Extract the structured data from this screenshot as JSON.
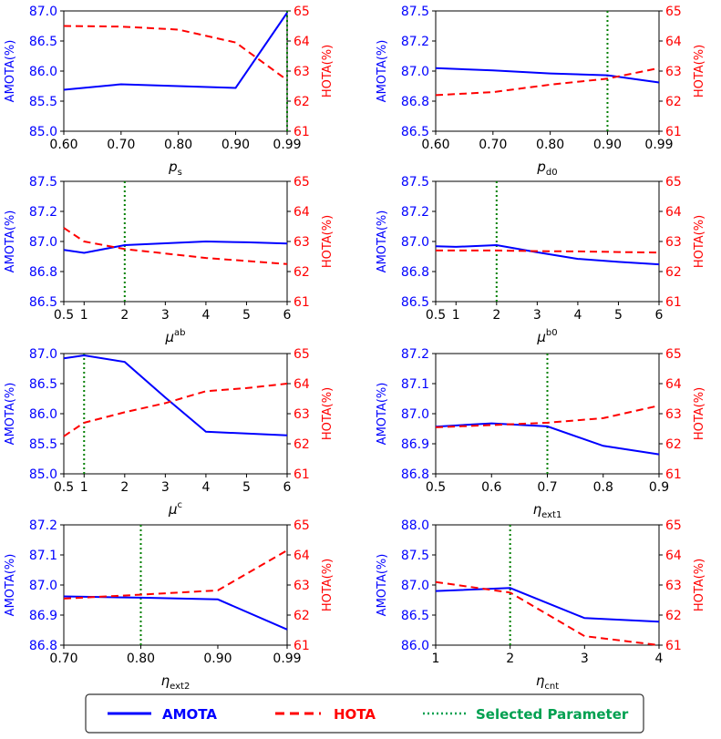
{
  "figure": {
    "colors": {
      "amota": "#0000ff",
      "hota": "#ff0000",
      "selected": "#008000"
    },
    "legend": {
      "items": [
        {
          "label": "AMOTA",
          "color": "#0000ff",
          "dash": "solid"
        },
        {
          "label": "HOTA",
          "color": "#ff0000",
          "dash": "dashed"
        },
        {
          "label": "Selected Parameter",
          "color": "#00a050",
          "dash": "dotted"
        }
      ]
    }
  },
  "chart_data": [
    {
      "type": "line",
      "panel": "p_s",
      "xlabel": {
        "sym": "p",
        "sub": "s",
        "subtype": "sub"
      },
      "categories": [
        "0.60",
        "0.70",
        "0.80",
        "0.90",
        "0.99"
      ],
      "x": [
        0.6,
        0.7,
        0.8,
        0.9,
        0.99
      ],
      "xlim": [
        0.6,
        0.99
      ],
      "ylabel_left": "AMOTA(%)",
      "ylim_left": [
        85.0,
        87.0
      ],
      "yticks_left": [
        "85.0",
        "85.5",
        "86.0",
        "86.5",
        "87.0"
      ],
      "ylabel_right": "HOTA(%)",
      "ylim_right": [
        61,
        65
      ],
      "yticks_right": [
        "61",
        "62",
        "63",
        "64",
        "65"
      ],
      "series": [
        {
          "name": "AMOTA",
          "axis": "left",
          "values": [
            85.69,
            85.78,
            85.75,
            85.72,
            86.97
          ]
        },
        {
          "name": "HOTA",
          "axis": "right",
          "values": [
            64.5,
            64.48,
            64.38,
            63.95,
            62.7
          ]
        }
      ],
      "selected": 0.99
    },
    {
      "type": "line",
      "panel": "p_d0",
      "xlabel": {
        "sym": "p",
        "sub": "d0",
        "subtype": "sub"
      },
      "categories": [
        "0.60",
        "0.70",
        "0.80",
        "0.90",
        "0.99"
      ],
      "x": [
        0.6,
        0.7,
        0.8,
        0.9,
        0.99
      ],
      "xlim": [
        0.6,
        0.99
      ],
      "ylabel_left": "AMOTA(%)",
      "ylim_left": [
        86.5,
        87.5
      ],
      "yticks_left": [
        "86.5",
        "86.8",
        "87.0",
        "87.2",
        "87.5"
      ],
      "ylabel_right": "HOTA(%)",
      "ylim_right": [
        61,
        65
      ],
      "yticks_right": [
        "61",
        "62",
        "63",
        "64",
        "65"
      ],
      "series": [
        {
          "name": "AMOTA",
          "axis": "left",
          "values": [
            87.025,
            87.005,
            86.98,
            86.965,
            86.905
          ]
        },
        {
          "name": "HOTA",
          "axis": "right",
          "values": [
            62.2,
            62.3,
            62.55,
            62.75,
            63.1
          ]
        }
      ],
      "selected": 0.9
    },
    {
      "type": "line",
      "panel": "mu_ab",
      "xlabel": {
        "sym": "μ",
        "sub": "ab",
        "subtype": "super"
      },
      "categories": [
        "0.5",
        "1",
        "2",
        "3",
        "4",
        "5",
        "6"
      ],
      "x": [
        0.5,
        1,
        2,
        3,
        4,
        5,
        6
      ],
      "xlim": [
        0.5,
        6
      ],
      "ylabel_left": "AMOTA(%)",
      "ylim_left": [
        86.5,
        87.5
      ],
      "yticks_left": [
        "86.5",
        "86.8",
        "87.0",
        "87.2",
        "87.5"
      ],
      "ylabel_right": "HOTA(%)",
      "ylim_right": [
        61,
        65
      ],
      "yticks_right": [
        "61",
        "62",
        "63",
        "64",
        "65"
      ],
      "series": [
        {
          "name": "AMOTA",
          "axis": "left",
          "values": [
            86.93,
            86.905,
            86.97,
            86.985,
            87.0,
            86.993,
            86.983
          ]
        },
        {
          "name": "HOTA",
          "axis": "right",
          "values": [
            63.45,
            63.0,
            62.75,
            62.6,
            62.45,
            62.35,
            62.25
          ]
        }
      ],
      "selected": 2
    },
    {
      "type": "line",
      "panel": "mu_b0",
      "xlabel": {
        "sym": "μ",
        "sub": "b0",
        "subtype": "super"
      },
      "categories": [
        "0.5",
        "1",
        "2",
        "3",
        "4",
        "5",
        "6"
      ],
      "x": [
        0.5,
        1,
        2,
        3,
        4,
        5,
        6
      ],
      "xlim": [
        0.5,
        6
      ],
      "ylabel_left": "AMOTA(%)",
      "ylim_left": [
        86.5,
        87.5
      ],
      "yticks_left": [
        "86.5",
        "86.8",
        "87.0",
        "87.2",
        "87.5"
      ],
      "ylabel_right": "HOTA(%)",
      "ylim_right": [
        61,
        65
      ],
      "yticks_right": [
        "61",
        "62",
        "63",
        "64",
        "65"
      ],
      "series": [
        {
          "name": "AMOTA",
          "axis": "left",
          "values": [
            86.96,
            86.955,
            86.97,
            86.91,
            86.855,
            86.83,
            86.81
          ]
        },
        {
          "name": "HOTA",
          "axis": "right",
          "values": [
            62.7,
            62.7,
            62.7,
            62.68,
            62.67,
            62.65,
            62.63
          ]
        }
      ],
      "selected": 2
    },
    {
      "type": "line",
      "panel": "mu_c",
      "xlabel": {
        "sym": "μ",
        "sub": "c",
        "subtype": "super"
      },
      "categories": [
        "0.5",
        "1",
        "2",
        "3",
        "4",
        "5",
        "6"
      ],
      "x": [
        0.5,
        1,
        2,
        3,
        4,
        5,
        6
      ],
      "xlim": [
        0.5,
        6
      ],
      "ylabel_left": "AMOTA(%)",
      "ylim_left": [
        85.0,
        87.0
      ],
      "yticks_left": [
        "85.0",
        "85.5",
        "86.0",
        "86.5",
        "87.0"
      ],
      "ylabel_right": "HOTA(%)",
      "ylim_right": [
        61,
        65
      ],
      "yticks_right": [
        "61",
        "62",
        "63",
        "64",
        "65"
      ],
      "series": [
        {
          "name": "AMOTA",
          "axis": "left",
          "values": [
            86.92,
            86.97,
            86.86,
            86.27,
            85.7,
            85.67,
            85.64
          ]
        },
        {
          "name": "HOTA",
          "axis": "right",
          "values": [
            62.25,
            62.7,
            63.05,
            63.35,
            63.75,
            63.85,
            64.0
          ]
        }
      ],
      "selected": 1
    },
    {
      "type": "line",
      "panel": "eta_ext1",
      "xlabel": {
        "sym": "η",
        "sub": "ext1",
        "subtype": "sub"
      },
      "categories": [
        "0.5",
        "0.6",
        "0.7",
        "0.8",
        "0.9"
      ],
      "x": [
        0.5,
        0.6,
        0.7,
        0.8,
        0.9
      ],
      "xlim": [
        0.5,
        0.9
      ],
      "ylabel_left": "AMOTA(%)",
      "ylim_left": [
        86.8,
        87.2
      ],
      "yticks_left": [
        "86.8",
        "86.9",
        "87.0",
        "87.1",
        "87.2"
      ],
      "ylabel_right": "HOTA(%)",
      "ylim_right": [
        61,
        65
      ],
      "yticks_right": [
        "61",
        "62",
        "63",
        "64",
        "65"
      ],
      "series": [
        {
          "name": "AMOTA",
          "axis": "left",
          "values": [
            86.957,
            86.968,
            86.958,
            86.893,
            86.865
          ]
        },
        {
          "name": "HOTA",
          "axis": "right",
          "values": [
            62.55,
            62.62,
            62.7,
            62.85,
            63.27
          ]
        }
      ],
      "selected": 0.7
    },
    {
      "type": "line",
      "panel": "eta_ext2",
      "xlabel": {
        "sym": "η",
        "sub": "ext2",
        "subtype": "sub"
      },
      "categories": [
        "0.70",
        "0.80",
        "0.90",
        "0.99"
      ],
      "x": [
        0.7,
        0.8,
        0.9,
        0.99
      ],
      "xlim": [
        0.7,
        0.99
      ],
      "ylabel_left": "AMOTA(%)",
      "ylim_left": [
        86.8,
        87.2
      ],
      "yticks_left": [
        "86.8",
        "86.9",
        "87.0",
        "87.1",
        "87.2"
      ],
      "ylabel_right": "HOTA(%)",
      "ylim_right": [
        61,
        65
      ],
      "yticks_right": [
        "61",
        "62",
        "63",
        "64",
        "65"
      ],
      "series": [
        {
          "name": "AMOTA",
          "axis": "left",
          "values": [
            86.962,
            86.958,
            86.952,
            86.852
          ]
        },
        {
          "name": "HOTA",
          "axis": "right",
          "values": [
            62.55,
            62.68,
            62.82,
            64.15
          ]
        }
      ],
      "selected": 0.8
    },
    {
      "type": "line",
      "panel": "eta_cnt",
      "xlabel": {
        "sym": "η",
        "sub": "cnt",
        "subtype": "sub"
      },
      "categories": [
        "1",
        "2",
        "3",
        "4"
      ],
      "x": [
        1,
        2,
        3,
        4
      ],
      "xlim": [
        1,
        4
      ],
      "ylabel_left": "AMOTA(%)",
      "ylim_left": [
        86.0,
        88.0
      ],
      "yticks_left": [
        "86.0",
        "86.5",
        "87.0",
        "87.5",
        "88.0"
      ],
      "ylabel_right": "HOTA(%)",
      "ylim_right": [
        61,
        65
      ],
      "yticks_right": [
        "61",
        "62",
        "63",
        "64",
        "65"
      ],
      "series": [
        {
          "name": "AMOTA",
          "axis": "left",
          "values": [
            86.9,
            86.95,
            86.45,
            86.39
          ]
        },
        {
          "name": "HOTA",
          "axis": "right",
          "values": [
            63.1,
            62.75,
            61.3,
            61.0
          ]
        }
      ],
      "selected": 2
    }
  ]
}
